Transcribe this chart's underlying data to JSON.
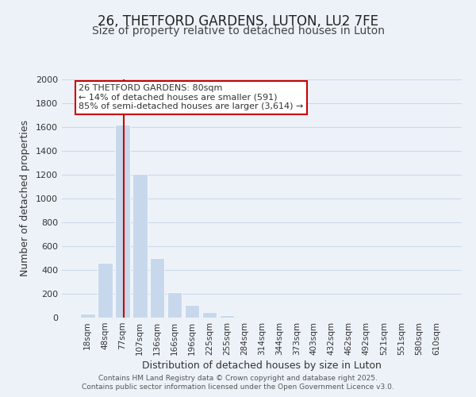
{
  "title": "26, THETFORD GARDENS, LUTON, LU2 7FE",
  "subtitle": "Size of property relative to detached houses in Luton",
  "xlabel": "Distribution of detached houses by size in Luton",
  "ylabel": "Number of detached properties",
  "bar_labels": [
    "18sqm",
    "48sqm",
    "77sqm",
    "107sqm",
    "136sqm",
    "166sqm",
    "196sqm",
    "225sqm",
    "255sqm",
    "284sqm",
    "314sqm",
    "344sqm",
    "373sqm",
    "403sqm",
    "432sqm",
    "462sqm",
    "492sqm",
    "521sqm",
    "551sqm",
    "580sqm",
    "610sqm"
  ],
  "bar_values": [
    35,
    460,
    1620,
    1210,
    500,
    215,
    110,
    45,
    20,
    0,
    0,
    0,
    0,
    0,
    0,
    0,
    0,
    0,
    0,
    0,
    0
  ],
  "bar_color": "#c8d8ec",
  "bar_edge_color": "#ffffff",
  "highlight_line_index": 2,
  "highlight_line_color": "#cc0000",
  "annotation_box_text": "26 THETFORD GARDENS: 80sqm\n← 14% of detached houses are smaller (591)\n85% of semi-detached houses are larger (3,614) →",
  "annotation_box_edge_color": "#cc0000",
  "ylim": [
    0,
    2000
  ],
  "yticks": [
    0,
    200,
    400,
    600,
    800,
    1000,
    1200,
    1400,
    1600,
    1800,
    2000
  ],
  "grid_color": "#ccd8ea",
  "background_color": "#edf2f9",
  "footer_line1": "Contains HM Land Registry data © Crown copyright and database right 2025.",
  "footer_line2": "Contains public sector information licensed under the Open Government Licence v3.0.",
  "title_fontsize": 12,
  "subtitle_fontsize": 10
}
